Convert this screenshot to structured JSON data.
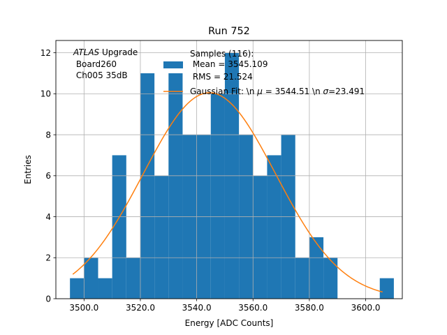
{
  "chart_data": {
    "type": "bar",
    "title": "Run 752",
    "xlabel": "Energy [ADC Counts]",
    "ylabel": "Entries",
    "xlim": [
      3490,
      3613
    ],
    "ylim": [
      0,
      12.6
    ],
    "xticks": [
      3500,
      3520,
      3540,
      3560,
      3580,
      3600
    ],
    "xtick_labels": [
      "3500.0",
      "3520.0",
      "3540.0",
      "3560.0",
      "3580.0",
      "3600.0"
    ],
    "yticks": [
      0,
      2,
      4,
      6,
      8,
      10,
      12
    ],
    "ytick_labels": [
      "0",
      "2",
      "4",
      "6",
      "8",
      "10",
      "12"
    ],
    "grid": true,
    "bin_edges": [
      3495,
      3500,
      3505,
      3510,
      3515,
      3520,
      3525,
      3530,
      3535,
      3540,
      3545,
      3550,
      3555,
      3560,
      3565,
      3570,
      3575,
      3580,
      3585,
      3590,
      3595,
      3600,
      3605,
      3610
    ],
    "values": [
      1,
      2,
      1,
      7,
      2,
      11,
      6,
      11,
      8,
      8,
      10,
      12,
      8,
      6,
      7,
      8,
      2,
      3,
      2,
      0,
      0,
      0,
      1
    ],
    "bar_color": "#1f77b4",
    "fit": {
      "mu": 3544.51,
      "sigma": 23.491,
      "amplitude": 10.05,
      "x_range": [
        3496,
        3606
      ],
      "color": "#ff7f0e"
    },
    "annotation": {
      "prefix_italic": "ATLAS",
      "line1_rest": " Upgrade",
      "line2": " Board260",
      "line3": " Ch005 35dB"
    },
    "legend": {
      "position": "upper-center",
      "hist_label_lines": [
        "Samples (116):",
        " Mean = 3545.109",
        " RMS = 21.524"
      ],
      "fit_label_prefix": "Gaussian Fit: \\n ",
      "fit_label_mu_sym": "μ",
      "fit_label_mid": " = 3544.51 \\n ",
      "fit_label_sigma_sym": "σ",
      "fit_label_end": "=23.491"
    }
  }
}
